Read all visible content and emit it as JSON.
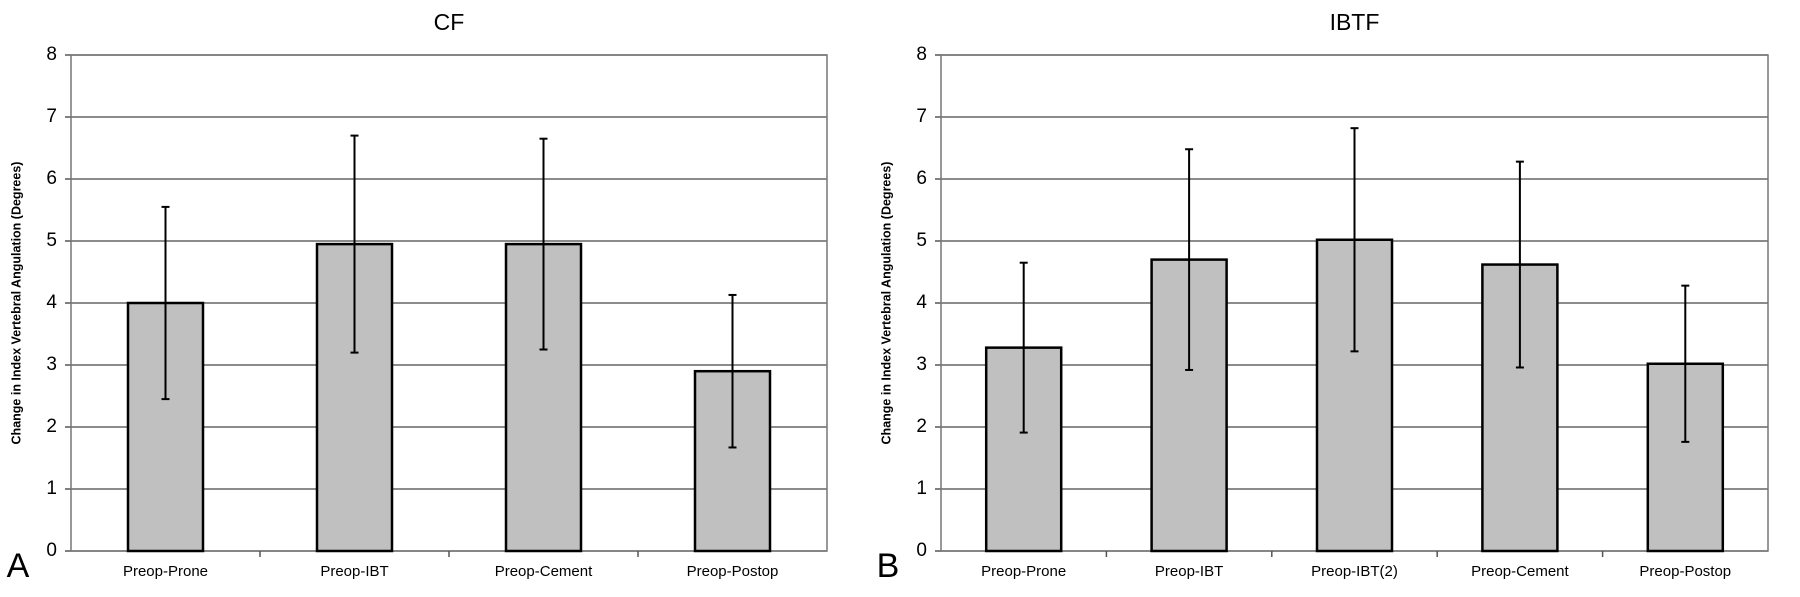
{
  "chart_data": [
    {
      "type": "bar",
      "title": "CF",
      "panel_label": "A",
      "y_label": "Change in Index Vertebral Angulation (Degrees)",
      "categories": [
        "Preop-Prone",
        "Preop-IBT",
        "Preop-Cement",
        "Preop-Postop"
      ],
      "values": [
        4.0,
        4.95,
        4.95,
        2.9
      ],
      "errors": [
        1.55,
        1.75,
        1.7,
        1.23
      ],
      "color": "#c0c0c0",
      "ylim": [
        0,
        8
      ],
      "yticks": [
        0,
        1,
        2,
        3,
        4,
        5,
        6,
        7,
        8
      ],
      "grid": true
    },
    {
      "type": "bar",
      "title": "IBTF",
      "panel_label": "B",
      "y_label": "Change in Index Vertebral Angulation (Degrees)",
      "categories": [
        "Preop-Prone",
        "Preop-IBT",
        "Preop-IBT(2)",
        "Preop-Cement",
        "Preop-Postop"
      ],
      "values": [
        3.28,
        4.7,
        5.02,
        4.62,
        3.02
      ],
      "errors": [
        1.37,
        1.78,
        1.8,
        1.66,
        1.26
      ],
      "color": "#c0c0c0",
      "ylim": [
        0,
        8
      ],
      "yticks": [
        0,
        1,
        2,
        3,
        4,
        5,
        6,
        7,
        8
      ],
      "grid": true
    }
  ]
}
